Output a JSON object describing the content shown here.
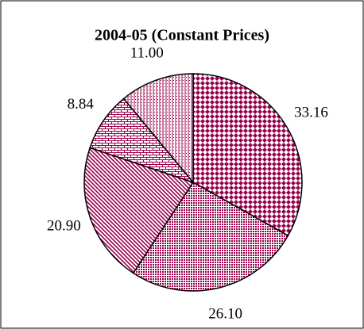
{
  "chart_data": {
    "type": "pie",
    "title": "2004-05 (Constant Prices)",
    "values": [
      33.16,
      26.1,
      20.9,
      8.84,
      11.0
    ],
    "value_labels": [
      "33.16",
      "26.10",
      "20.90",
      "8.84",
      "11.00"
    ],
    "color": "#99004c"
  }
}
